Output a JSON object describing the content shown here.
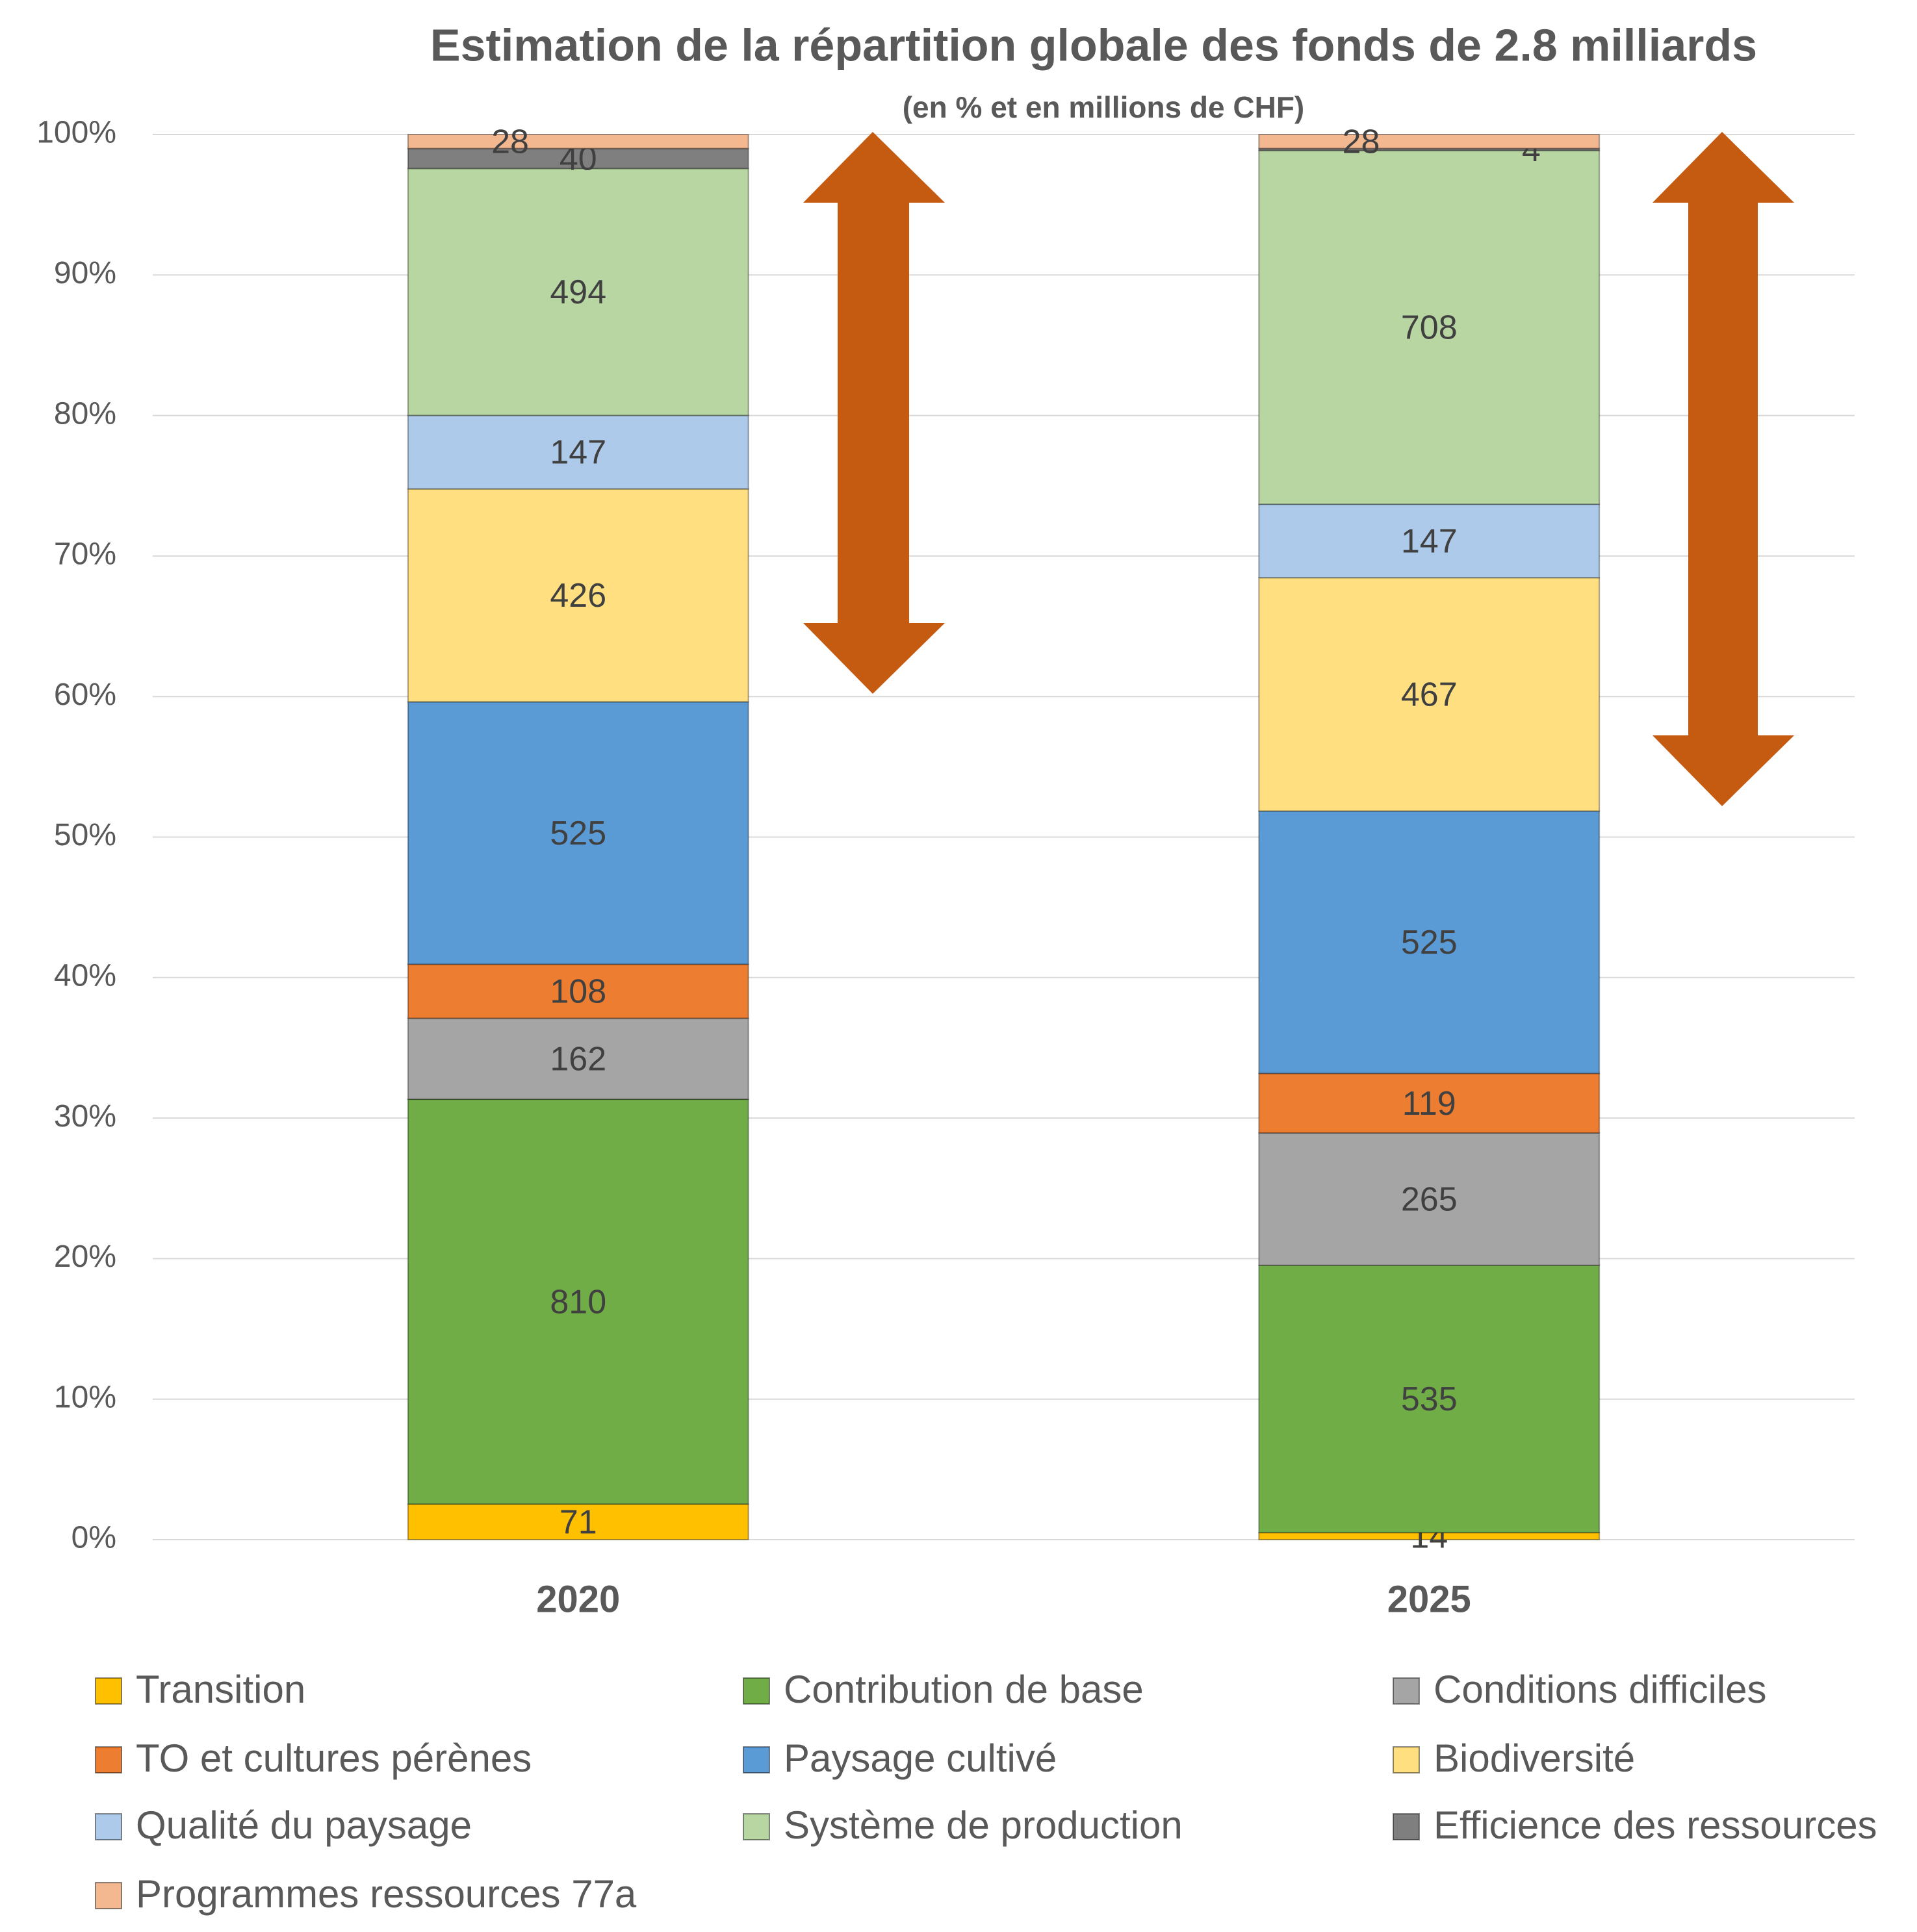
{
  "chart_data": {
    "type": "bar",
    "stacking": "percent",
    "title": "Estimation de la répartition globale des fonds de 2.8  milliards",
    "subtitle": "(en % et en millions de CHF)",
    "categories": [
      "2020",
      "2025"
    ],
    "series": [
      {
        "name": "Transition",
        "color": "#FFC000",
        "values": [
          71,
          14
        ]
      },
      {
        "name": "Contribution de base",
        "color": "#70AD47",
        "values": [
          810,
          535
        ]
      },
      {
        "name": "Conditions difficiles",
        "color": "#A5A5A5",
        "values": [
          162,
          265
        ]
      },
      {
        "name": "TO et cultures pérènes",
        "color": "#ED7D31",
        "values": [
          108,
          119
        ]
      },
      {
        "name": "Paysage cultivé",
        "color": "#5B9BD5",
        "values": [
          525,
          525
        ]
      },
      {
        "name": "Biodiversité",
        "color": "#FFDF80",
        "values": [
          426,
          467
        ]
      },
      {
        "name": "Qualité du paysage",
        "color": "#ADCAEA",
        "values": [
          147,
          147
        ]
      },
      {
        "name": "Système de production",
        "color": "#B8D6A2",
        "values": [
          494,
          708
        ]
      },
      {
        "name": "Efficience des ressources",
        "color": "#7F7F7F",
        "values": [
          40,
          4
        ]
      },
      {
        "name": "Programmes ressources 77a",
        "color": "#F4B891",
        "values": [
          28,
          28
        ]
      }
    ],
    "ylim": [
      0,
      100
    ],
    "yticks": [
      {
        "value": 0,
        "label": "0%"
      },
      {
        "value": 10,
        "label": "10%"
      },
      {
        "value": 20,
        "label": "20%"
      },
      {
        "value": 30,
        "label": "30%"
      },
      {
        "value": 40,
        "label": "40%"
      },
      {
        "value": 50,
        "label": "50%"
      },
      {
        "value": 60,
        "label": "60%"
      },
      {
        "value": 70,
        "label": "70%"
      },
      {
        "value": 80,
        "label": "80%"
      },
      {
        "value": 90,
        "label": "90%"
      },
      {
        "value": 100,
        "label": "100%"
      }
    ],
    "grid": true,
    "legend": "bottom"
  }
}
